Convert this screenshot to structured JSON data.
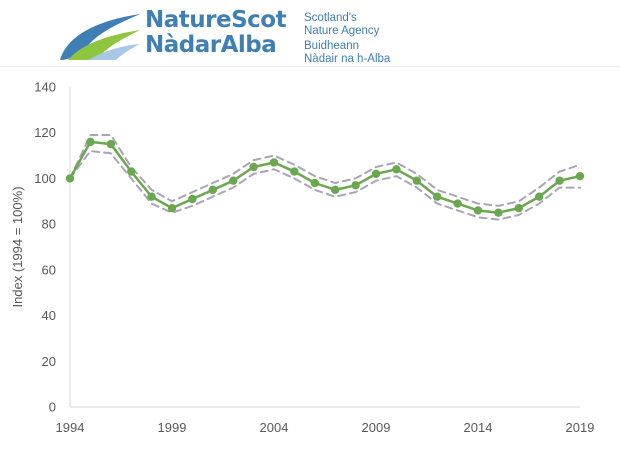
{
  "logo": {
    "brand_line1": "NatureScot",
    "brand_line2": "NàdarAlba",
    "tagline_en_1": "Scotland's",
    "tagline_en_2": "Nature Agency",
    "tagline_gd_1": "Buidheann",
    "tagline_gd_2": "Nàdair na h-Alba",
    "colors": {
      "blue": "#3f7fb6",
      "green": "#8ec63f",
      "light_blue": "#a9c8e6"
    }
  },
  "chart_data": {
    "type": "line",
    "xlabel": "",
    "ylabel": "Index (1994 = 100%)",
    "ylim": [
      0,
      140
    ],
    "xlim": [
      1994,
      2019
    ],
    "yticks": [
      0,
      20,
      40,
      60,
      80,
      100,
      120,
      140
    ],
    "xticks": [
      1994,
      1999,
      2004,
      2009,
      2014,
      2019
    ],
    "grid": false,
    "legend": "none",
    "x": [
      1994,
      1995,
      1996,
      1997,
      1998,
      1999,
      2000,
      2001,
      2002,
      2003,
      2004,
      2005,
      2006,
      2007,
      2008,
      2009,
      2010,
      2011,
      2012,
      2013,
      2014,
      2015,
      2016,
      2017,
      2018,
      2019
    ],
    "series": [
      {
        "role": "index",
        "color": "#6aa84f",
        "values": [
          100,
          116,
          115,
          103,
          92,
          87,
          91,
          95,
          99,
          105,
          107,
          103,
          98,
          95,
          97,
          102,
          104,
          99,
          92,
          89,
          86,
          85,
          87,
          92,
          99,
          101
        ]
      },
      {
        "role": "upper-confidence-limit",
        "color": "#a6a6b5",
        "style": "dashed",
        "values": [
          100,
          119,
          119,
          105,
          95,
          90,
          94,
          98,
          102,
          108,
          110,
          106,
          101,
          98,
          100,
          105,
          107,
          102,
          95,
          92,
          89,
          88,
          90,
          96,
          103,
          106
        ]
      },
      {
        "role": "lower-confidence-limit",
        "color": "#a6a6b5",
        "style": "dashed",
        "values": [
          100,
          112,
          111,
          100,
          89,
          85,
          88,
          92,
          96,
          102,
          104,
          100,
          95,
          92,
          94,
          99,
          101,
          96,
          89,
          86,
          83,
          82,
          84,
          89,
          96,
          96
        ]
      }
    ]
  }
}
